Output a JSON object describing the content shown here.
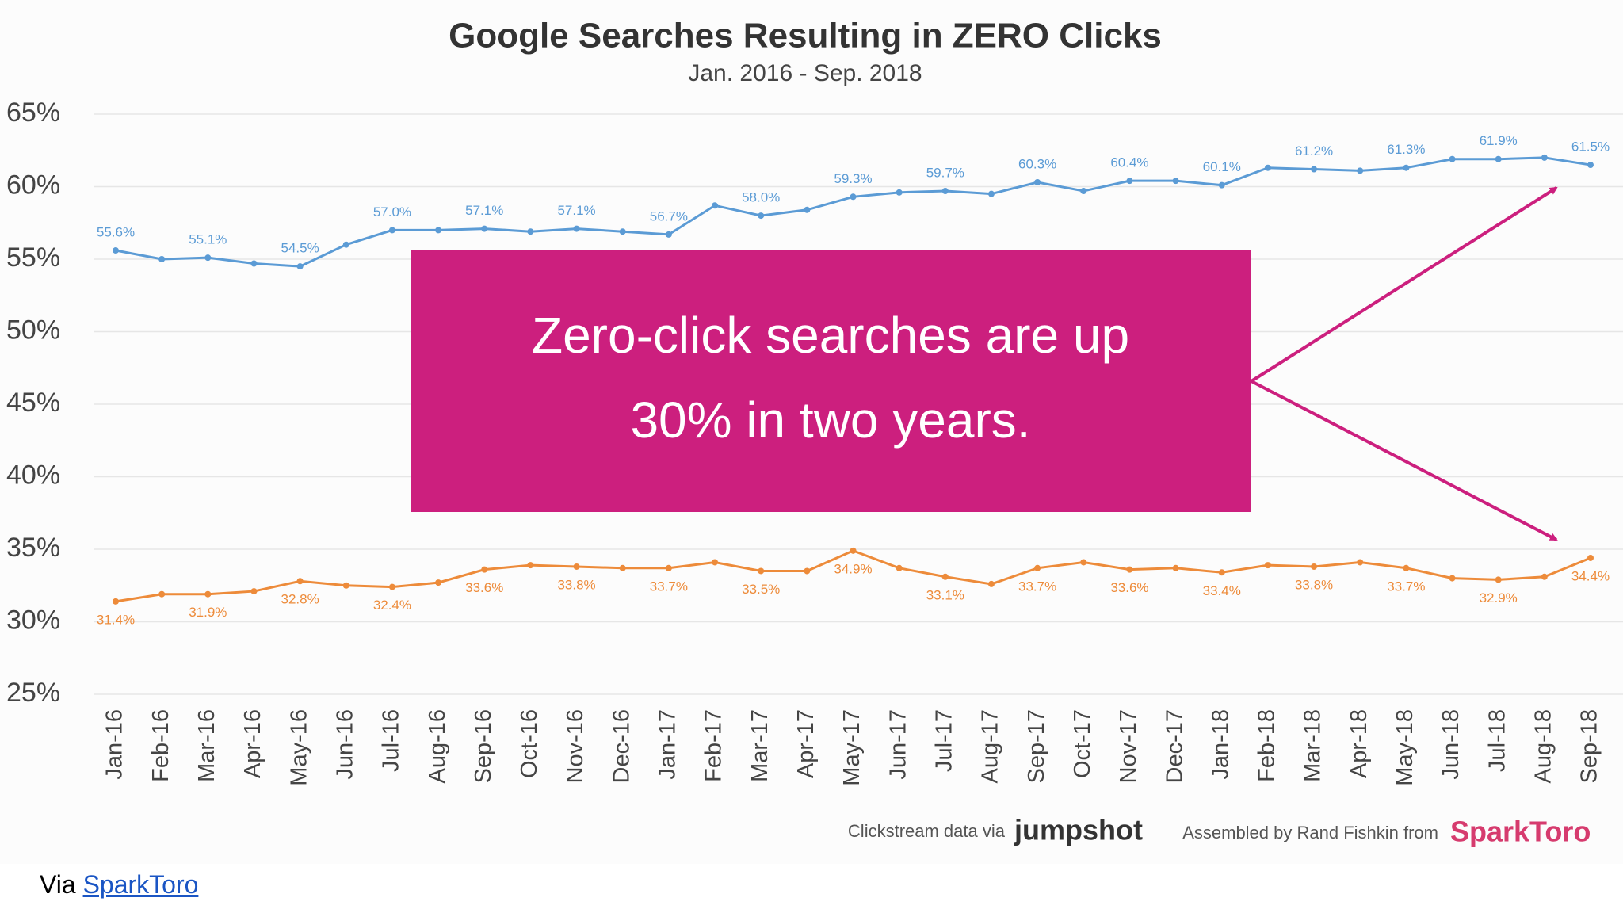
{
  "chart_data": {
    "type": "line",
    "title": "Google Searches Resulting in ZERO Clicks",
    "subtitle": "Jan. 2016 - Sep. 2018",
    "categories": [
      "Jan-16",
      "Feb-16",
      "Mar-16",
      "Apr-16",
      "May-16",
      "Jun-16",
      "Jul-16",
      "Aug-16",
      "Sep-16",
      "Oct-16",
      "Nov-16",
      "Dec-16",
      "Jan-17",
      "Feb-17",
      "Mar-17",
      "Apr-17",
      "May-17",
      "Jun-17",
      "Jul-17",
      "Aug-17",
      "Sep-17",
      "Oct-17",
      "Nov-17",
      "Dec-17",
      "Jan-18",
      "Feb-18",
      "Mar-18",
      "Apr-18",
      "May-18",
      "Jun-18",
      "Jul-18",
      "Aug-18",
      "Sep-18"
    ],
    "series": [
      {
        "color": "#5b9bd5",
        "values": [
          55.6,
          55.0,
          55.1,
          54.7,
          54.5,
          56.0,
          57.0,
          57.0,
          57.1,
          56.9,
          57.1,
          56.9,
          56.7,
          58.7,
          58.0,
          58.4,
          59.3,
          59.6,
          59.7,
          59.5,
          60.3,
          59.7,
          60.4,
          60.4,
          60.1,
          61.3,
          61.2,
          61.1,
          61.3,
          61.9,
          61.9,
          62.0,
          61.5
        ],
        "value_labels": [
          "55.6%",
          null,
          "55.1%",
          null,
          "54.5%",
          null,
          "57.0%",
          null,
          "57.1%",
          null,
          "57.1%",
          null,
          "56.7%",
          null,
          "58.0%",
          null,
          "59.3%",
          null,
          "59.7%",
          null,
          "60.3%",
          null,
          "60.4%",
          null,
          "60.1%",
          null,
          "61.2%",
          null,
          "61.3%",
          null,
          "61.9%",
          null,
          "61.5%"
        ]
      },
      {
        "color": "#ed8b3a",
        "values": [
          31.4,
          31.9,
          31.9,
          32.1,
          32.8,
          32.5,
          32.4,
          32.7,
          33.6,
          33.9,
          33.8,
          33.7,
          33.7,
          34.1,
          33.5,
          33.5,
          34.9,
          33.7,
          33.1,
          32.6,
          33.7,
          34.1,
          33.6,
          33.7,
          33.4,
          33.9,
          33.8,
          34.1,
          33.7,
          33.0,
          32.9,
          33.1,
          34.4
        ],
        "value_labels": [
          "31.4%",
          null,
          "31.9%",
          null,
          "32.8%",
          null,
          "32.4%",
          null,
          "33.6%",
          null,
          "33.8%",
          null,
          "33.7%",
          null,
          "33.5%",
          null,
          "34.9%",
          null,
          "33.1%",
          null,
          "33.7%",
          null,
          "33.6%",
          null,
          "33.4%",
          null,
          "33.8%",
          null,
          "33.7%",
          null,
          "32.9%",
          null,
          "34.4%"
        ]
      }
    ],
    "ylim": [
      25,
      65
    ],
    "yticks": [
      {
        "value": 25,
        "label": "25%"
      },
      {
        "value": 30,
        "label": "30%"
      },
      {
        "value": 35,
        "label": "35%"
      },
      {
        "value": 40,
        "label": "40%"
      },
      {
        "value": 45,
        "label": "45%"
      },
      {
        "value": 50,
        "label": "50%"
      },
      {
        "value": 55,
        "label": "55%"
      },
      {
        "value": 60,
        "label": "60%"
      },
      {
        "value": 65,
        "label": "65%"
      }
    ],
    "grid": true
  },
  "callout": {
    "line1": "Zero-click searches are up",
    "line2": "30% in two years.",
    "color": "#cc1f7e"
  },
  "credits": {
    "data_prefix": "Clickstream data via",
    "data_brand": "jumpshot",
    "assembled": "Assembled by Rand Fishkin from",
    "brand": "SparkToro"
  },
  "footer": {
    "via": "Via",
    "link": "SparkToro"
  }
}
